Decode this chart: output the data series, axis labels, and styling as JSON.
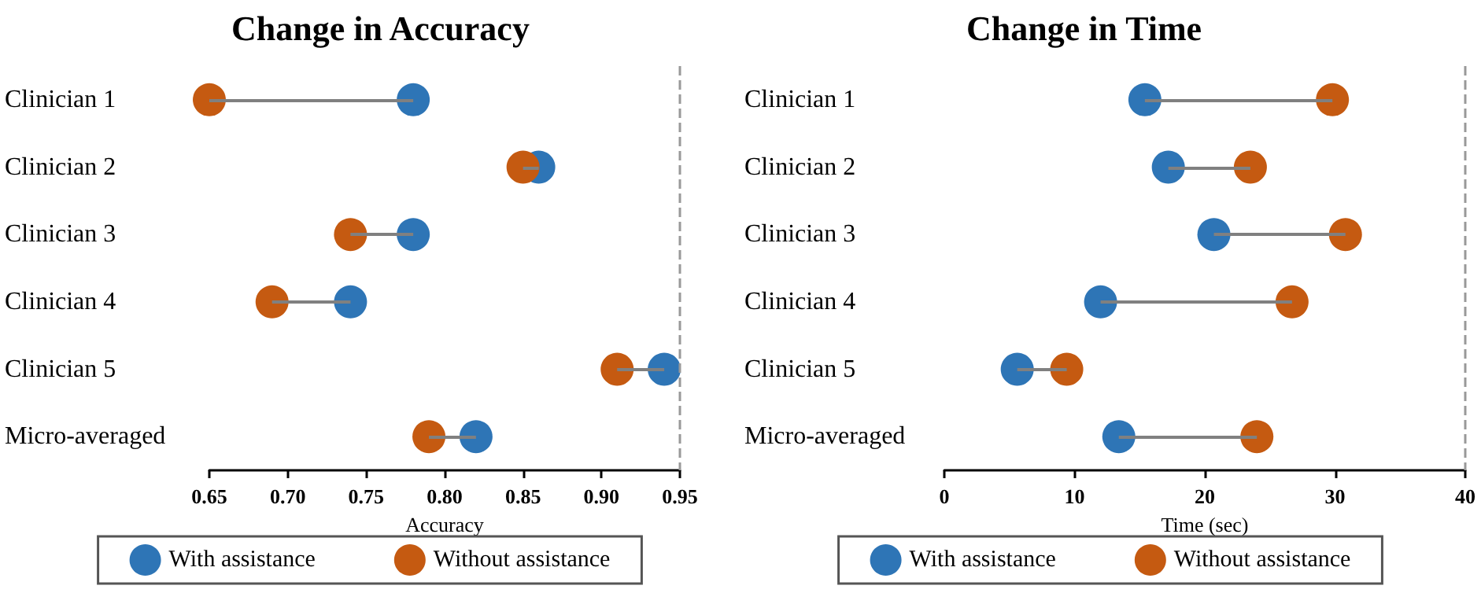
{
  "chart_data": [
    {
      "type": "scatter",
      "title": "Change in Accuracy",
      "xlabel": "Accuracy",
      "orientation": "horizontal",
      "categories": [
        "Clinician 1",
        "Clinician 2",
        "Clinician 3",
        "Clinician 4",
        "Clinician 5",
        "Micro-averaged"
      ],
      "series": [
        {
          "name": "With assistance",
          "color": "#2e75b6",
          "values": [
            0.78,
            0.86,
            0.78,
            0.74,
            0.94,
            0.82
          ]
        },
        {
          "name": "Without assistance",
          "color": "#c55a11",
          "values": [
            0.65,
            0.85,
            0.74,
            0.69,
            0.91,
            0.79
          ]
        }
      ],
      "xlim": [
        0.65,
        0.95
      ],
      "xticks": [
        {
          "value": 0.65,
          "label": "0.65"
        },
        {
          "value": 0.7,
          "label": "0.70"
        },
        {
          "value": 0.75,
          "label": "0.75"
        },
        {
          "value": 0.8,
          "label": "0.80"
        },
        {
          "value": 0.85,
          "label": "0.85"
        },
        {
          "value": 0.9,
          "label": "0.90"
        },
        {
          "value": 0.95,
          "label": "0.95"
        }
      ],
      "ref_lines": [
        {
          "axis": "x",
          "value": 0.95,
          "color": "#999999",
          "line_style": "dashed"
        }
      ],
      "marker": "circle",
      "legend": "bottom",
      "grid": false
    },
    {
      "type": "scatter",
      "title": "Change in Time",
      "xlabel": "Time (sec)",
      "orientation": "horizontal",
      "categories": [
        "Clinician 1",
        "Clinician 2",
        "Clinician 3",
        "Clinician 4",
        "Clinician 5",
        "Micro-averaged"
      ],
      "series": [
        {
          "name": "With assistance",
          "color": "#2e75b6",
          "values": [
            15.4,
            17.2,
            20.7,
            12.0,
            5.6,
            13.4
          ]
        },
        {
          "name": "Without assistance",
          "color": "#c55a11",
          "values": [
            29.8,
            23.5,
            30.8,
            26.7,
            9.4,
            24.0
          ]
        }
      ],
      "xlim": [
        0,
        40
      ],
      "xticks": [
        0,
        10,
        20,
        30,
        40
      ],
      "ref_lines": [
        {
          "axis": "x",
          "value": 40,
          "color": "#999999",
          "line_style": "dashed"
        }
      ],
      "marker": "circle",
      "legend": "bottom",
      "grid": false
    }
  ]
}
